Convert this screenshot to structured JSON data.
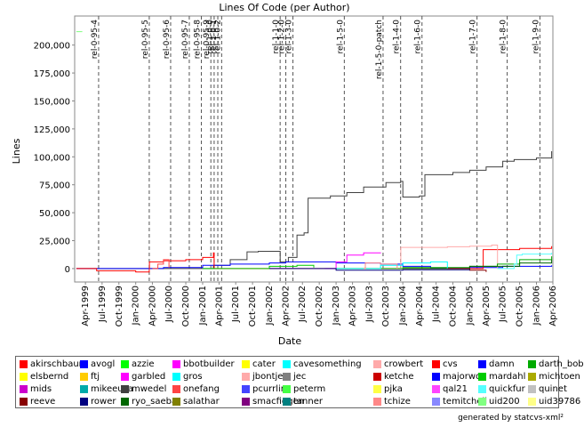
{
  "chart_data": {
    "type": "line",
    "title": "Lines Of Code (per Author)",
    "xlabel": "Date",
    "ylabel": "Lines",
    "ylim": [
      -12000,
      226000
    ],
    "xlim": [
      "1999-02-01",
      "2006-04-01"
    ],
    "y_ticks": [
      0,
      25000,
      50000,
      75000,
      100000,
      125000,
      150000,
      175000,
      200000
    ],
    "y_tick_labels": [
      "0",
      "25,000",
      "50,000",
      "75,000",
      "100,000",
      "125,000",
      "150,000",
      "175,000",
      "200,000"
    ],
    "x_ticks": [
      "1999-04-01",
      "1999-07-01",
      "1999-10-01",
      "2000-01-01",
      "2000-04-01",
      "2000-07-01",
      "2000-10-01",
      "2001-01-01",
      "2001-04-01",
      "2001-07-01",
      "2001-10-01",
      "2002-01-01",
      "2002-04-01",
      "2002-07-01",
      "2002-10-01",
      "2003-01-01",
      "2003-04-01",
      "2003-07-01",
      "2003-10-01",
      "2004-01-01",
      "2004-04-01",
      "2004-07-01",
      "2004-10-01",
      "2005-01-01",
      "2005-04-01",
      "2005-07-01",
      "2005-10-01",
      "2006-01-01",
      "2006-04-01"
    ],
    "x_tick_labels": [
      "Apr-1999",
      "Jul-1999",
      "Oct-1999",
      "Jan-2000",
      "Apr-2000",
      "Jul-2000",
      "Oct-2000",
      "Jan-2001",
      "Apr-2001",
      "Jul-2001",
      "Oct-2001",
      "Jan-2002",
      "Apr-2002",
      "Jul-2002",
      "Oct-2002",
      "Jan-2003",
      "Apr-2003",
      "Jul-2003",
      "Oct-2003",
      "Jan-2004",
      "Apr-2004",
      "Jul-2004",
      "Oct-2004",
      "Jan-2005",
      "Apr-2005",
      "Jul-2005",
      "Oct-2005",
      "Jan-2006",
      "Apr-2006"
    ],
    "grid": false,
    "markers": [
      {
        "label": "rel-0-95-4",
        "date": "1999-06-12"
      },
      {
        "label": "rel-0-95-5",
        "date": "2000-03-15"
      },
      {
        "label": "rel-0-95-6",
        "date": "2000-07-10"
      },
      {
        "label": "rel-0-95-7",
        "date": "2000-10-20"
      },
      {
        "label": "rel-0-95-8",
        "date": "2000-12-25"
      },
      {
        "label": "rel-0-95-9",
        "date": "2001-02-15"
      },
      {
        "label": "rel-1-0-0",
        "date": "2001-03-05"
      },
      {
        "label": "rel-1-0-1",
        "date": "2001-03-25"
      },
      {
        "label": "rel-1-0-2",
        "date": "2001-04-15"
      },
      {
        "label": "rel-1-1-0",
        "date": "2002-03-01"
      },
      {
        "label": "rel-1-2-0",
        "date": "2002-04-01"
      },
      {
        "label": "rel-1-3-0",
        "date": "2002-05-10"
      },
      {
        "label": "rel-1-5-0",
        "date": "2003-02-15"
      },
      {
        "label": "rel-1-5-0-patch",
        "date": "2003-09-15"
      },
      {
        "label": "rel-1-4-0",
        "date": "2003-12-20"
      },
      {
        "label": "rel-1-6-0",
        "date": "2004-04-15"
      },
      {
        "label": "rel-1-7-0",
        "date": "2005-02-10"
      },
      {
        "label": "rel-1-8-0",
        "date": "2005-07-25"
      },
      {
        "label": "rel-1-9-0",
        "date": "2006-01-20"
      }
    ],
    "series": [
      {
        "name": "mwedel",
        "color": "#404040",
        "points": [
          [
            "1999-02-10",
            0
          ],
          [
            "2001-03-01",
            3000
          ],
          [
            "2001-06-01",
            8000
          ],
          [
            "2001-09-01",
            15000
          ],
          [
            "2001-11-01",
            15500
          ],
          [
            "2002-03-01",
            6000
          ],
          [
            "2002-04-15",
            10000
          ],
          [
            "2002-06-01",
            30000
          ],
          [
            "2002-07-10",
            32000
          ],
          [
            "2002-08-01",
            63000
          ],
          [
            "2002-12-01",
            65000
          ],
          [
            "2003-03-01",
            68000
          ],
          [
            "2003-06-01",
            73000
          ],
          [
            "2003-10-01",
            77000
          ],
          [
            "2003-12-20",
            78000
          ],
          [
            "2004-01-01",
            64000
          ],
          [
            "2004-04-01",
            65000
          ],
          [
            "2004-05-01",
            84000
          ],
          [
            "2004-10-01",
            86000
          ],
          [
            "2005-01-01",
            88000
          ],
          [
            "2005-04-01",
            91000
          ],
          [
            "2005-07-01",
            96000
          ],
          [
            "2005-09-01",
            97500
          ],
          [
            "2006-01-01",
            99000
          ],
          [
            "2006-03-25",
            105000
          ]
        ]
      },
      {
        "name": "avogl",
        "color": "#0000ff",
        "points": [
          [
            "1999-02-10",
            0
          ],
          [
            "2000-06-01",
            1000
          ],
          [
            "2001-01-01",
            3000
          ],
          [
            "2001-06-01",
            4000
          ],
          [
            "2002-01-01",
            5000
          ],
          [
            "2002-04-01",
            6000
          ],
          [
            "2003-01-01",
            5000
          ],
          [
            "2003-09-01",
            4000
          ],
          [
            "2004-01-01",
            2000
          ],
          [
            "2004-06-01",
            500
          ],
          [
            "2005-01-01",
            1000
          ],
          [
            "2005-07-01",
            2000
          ],
          [
            "2006-03-25",
            3000
          ]
        ]
      },
      {
        "name": "cvs",
        "color": "#ff0000",
        "points": [
          [
            "2000-03-15",
            0
          ],
          [
            "2000-03-16",
            6000
          ],
          [
            "2000-06-01",
            7000
          ],
          [
            "2000-10-01",
            8000
          ],
          [
            "2001-01-01",
            10000
          ],
          [
            "2001-03-01",
            14000
          ],
          [
            "2001-03-05",
            0
          ],
          [
            "2005-03-15",
            0
          ],
          [
            "2005-03-16",
            17000
          ],
          [
            "2005-10-01",
            18000
          ],
          [
            "2006-03-25",
            20000
          ]
        ]
      },
      {
        "name": "crowbert",
        "color": "#ffaaaa",
        "points": [
          [
            "2002-01-01",
            0
          ],
          [
            "2003-12-20",
            0
          ],
          [
            "2003-12-21",
            19000
          ],
          [
            "2004-09-01",
            19500
          ],
          [
            "2005-01-01",
            20000
          ],
          [
            "2005-05-01",
            21000
          ],
          [
            "2005-06-01",
            21000
          ],
          [
            "2005-06-02",
            0
          ]
        ]
      },
      {
        "name": "garbled",
        "color": "#ff00ff",
        "points": [
          [
            "2002-11-01",
            0
          ],
          [
            "2003-01-01",
            6000
          ],
          [
            "2003-03-01",
            12000
          ],
          [
            "2003-06-01",
            14000
          ],
          [
            "2003-09-01",
            14500
          ]
        ]
      },
      {
        "name": "darth_bob",
        "color": "#00aa00",
        "points": [
          [
            "2003-01-01",
            0
          ],
          [
            "2004-01-01",
            1000
          ],
          [
            "2005-01-01",
            2000
          ],
          [
            "2005-06-01",
            4000
          ],
          [
            "2005-10-01",
            8000
          ],
          [
            "2006-03-25",
            11000
          ]
        ]
      },
      {
        "name": "ryo_saeba",
        "color": "#006600",
        "points": [
          [
            "2004-01-01",
            0
          ],
          [
            "2005-01-01",
            2000
          ],
          [
            "2005-10-01",
            5000
          ],
          [
            "2006-03-25",
            8000
          ]
        ]
      },
      {
        "name": "quickfur",
        "color": "#55ffff",
        "points": [
          [
            "2005-06-01",
            0
          ],
          [
            "2005-09-01",
            4000
          ],
          [
            "2005-09-15",
            12000
          ],
          [
            "2005-10-15",
            13000
          ],
          [
            "2006-03-25",
            14000
          ]
        ]
      },
      {
        "name": "uid200",
        "color": "#80ff80",
        "points": [
          [
            "1999-02-10",
            212000
          ],
          [
            "1999-03-15",
            212000
          ]
        ]
      },
      {
        "name": "mardahl",
        "color": "#00cc00",
        "points": [
          [
            "2001-01-01",
            0
          ],
          [
            "2002-01-01",
            2000
          ],
          [
            "2002-06-01",
            3000
          ],
          [
            "2002-09-01",
            1000
          ]
        ]
      },
      {
        "name": "cavesomething",
        "color": "#00ffff",
        "points": [
          [
            "2003-01-01",
            0
          ],
          [
            "2003-09-01",
            3000
          ],
          [
            "2004-01-01",
            5000
          ],
          [
            "2004-06-01",
            6000
          ],
          [
            "2004-09-01",
            0
          ]
        ]
      },
      {
        "name": "tchize",
        "color": "#ff8888",
        "points": [
          [
            "2003-06-01",
            0
          ],
          [
            "2003-06-10",
            5000
          ],
          [
            "2003-09-01",
            4000
          ],
          [
            "2003-12-01",
            0
          ]
        ]
      },
      {
        "name": "akirschbaum",
        "color": "#ff0000",
        "points": [
          [
            "1999-02-10",
            0
          ],
          [
            "1999-06-01",
            -2000
          ],
          [
            "2000-01-01",
            -3000
          ],
          [
            "2000-03-15",
            -500
          ]
        ]
      },
      {
        "name": "reeve",
        "color": "#880000",
        "points": [
          [
            "2004-09-01",
            0
          ],
          [
            "2005-01-01",
            -1500
          ],
          [
            "2005-04-01",
            -3000
          ]
        ]
      },
      {
        "name": "onefang",
        "color": "#ff4444",
        "points": [
          [
            "2000-04-01",
            0
          ],
          [
            "2000-05-01",
            4000
          ],
          [
            "2000-06-01",
            8000
          ],
          [
            "2000-07-01",
            1000
          ]
        ]
      },
      {
        "name": "rower",
        "color": "#000080",
        "points": [
          [
            "2002-01-01",
            0
          ],
          [
            "2003-01-01",
            -1500
          ],
          [
            "2004-01-01",
            -1000
          ],
          [
            "2005-01-01",
            -500
          ]
        ]
      }
    ],
    "legend_position": "bottom",
    "legend": [
      {
        "name": "akirschbaum",
        "color": "#ff0000"
      },
      {
        "name": "avogl",
        "color": "#0000ff"
      },
      {
        "name": "azzie",
        "color": "#00ff00"
      },
      {
        "name": "bbotbuilder",
        "color": "#ff00ff"
      },
      {
        "name": "cater",
        "color": "#ffff00"
      },
      {
        "name": "cavesomething",
        "color": "#00ffff"
      },
      {
        "name": "crowbert",
        "color": "#ffaaaa"
      },
      {
        "name": "cvs",
        "color": "#ff0000"
      },
      {
        "name": "damn",
        "color": "#0000ff"
      },
      {
        "name": "darth_bob",
        "color": "#00aa00"
      },
      {
        "name": "elsbernd",
        "color": "#ffff00"
      },
      {
        "name": "ftj",
        "color": "#ffcc00"
      },
      {
        "name": "garbled",
        "color": "#ff00ff"
      },
      {
        "name": "gros",
        "color": "#00ffff"
      },
      {
        "name": "jbontje",
        "color": "#ffaaaa"
      },
      {
        "name": "jec",
        "color": "#808080"
      },
      {
        "name": "ketche",
        "color": "#cc0000"
      },
      {
        "name": "majorwoo",
        "color": "#0000ff"
      },
      {
        "name": "mardahl",
        "color": "#00cc00"
      },
      {
        "name": "michtoen",
        "color": "#aaaa00"
      },
      {
        "name": "mids",
        "color": "#cc00cc"
      },
      {
        "name": "mikeeusa",
        "color": "#00aaaa"
      },
      {
        "name": "mwedel",
        "color": "#404040"
      },
      {
        "name": "onefang",
        "color": "#ff4444"
      },
      {
        "name": "pcurrlin",
        "color": "#4444ff"
      },
      {
        "name": "peterm",
        "color": "#44ff44"
      },
      {
        "name": "pjka",
        "color": "#ffff44"
      },
      {
        "name": "qal21",
        "color": "#ff44ff"
      },
      {
        "name": "quickfur",
        "color": "#55ffff"
      },
      {
        "name": "quinet",
        "color": "#c0c0c0"
      },
      {
        "name": "reeve",
        "color": "#880000"
      },
      {
        "name": "rower",
        "color": "#000080"
      },
      {
        "name": "ryo_saeba",
        "color": "#006600"
      },
      {
        "name": "salathar",
        "color": "#808000"
      },
      {
        "name": "smacfiggen",
        "color": "#800080"
      },
      {
        "name": "tanner",
        "color": "#008080"
      },
      {
        "name": "tchize",
        "color": "#ff8888"
      },
      {
        "name": "temitchell",
        "color": "#8888ff"
      },
      {
        "name": "uid200",
        "color": "#80ff80"
      },
      {
        "name": "uid39786",
        "color": "#ffff88"
      }
    ]
  },
  "footer": {
    "credit": "generated by statcvs-xml²"
  }
}
